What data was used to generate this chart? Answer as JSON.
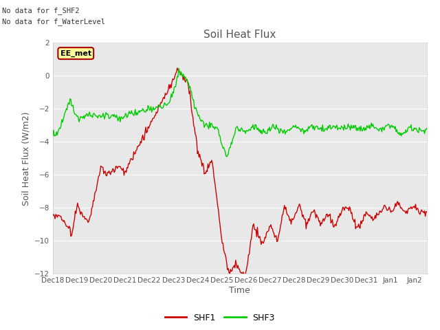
{
  "title": "Soil Heat Flux",
  "ylabel": "Soil Heat Flux (W/m2)",
  "xlabel": "Time",
  "text_no_data": [
    "No data for f_SHF2",
    "No data for f_WaterLevel"
  ],
  "annotation_text": "EE_met",
  "ylim": [
    -12,
    2
  ],
  "yticks": [
    2,
    0,
    -2,
    -4,
    -6,
    -8,
    -10,
    -12
  ],
  "x_tick_labels": [
    "Dec 18",
    "Dec 19",
    "Dec 20",
    "Dec 21",
    "Dec 22",
    "Dec 23",
    "Dec 24",
    "Dec 25",
    "Dec 26",
    "Dec 27",
    "Dec 28",
    "Dec 29",
    "Dec 30",
    "Dec 31",
    "Jan 1",
    "Jan 2"
  ],
  "color_shf1": "#cc0000",
  "color_shf3": "#00cc00",
  "legend_labels": [
    "SHF1",
    "SHF3"
  ],
  "background_color": "#ffffff",
  "plot_bg_color": "#e8e8e8",
  "grid_color": "#ffffff",
  "title_color": "#555555",
  "annotation_bg": "#ffff99",
  "annotation_border": "#aa0000",
  "tick_label_fontsize": 7.5,
  "axis_label_fontsize": 9,
  "title_fontsize": 11
}
